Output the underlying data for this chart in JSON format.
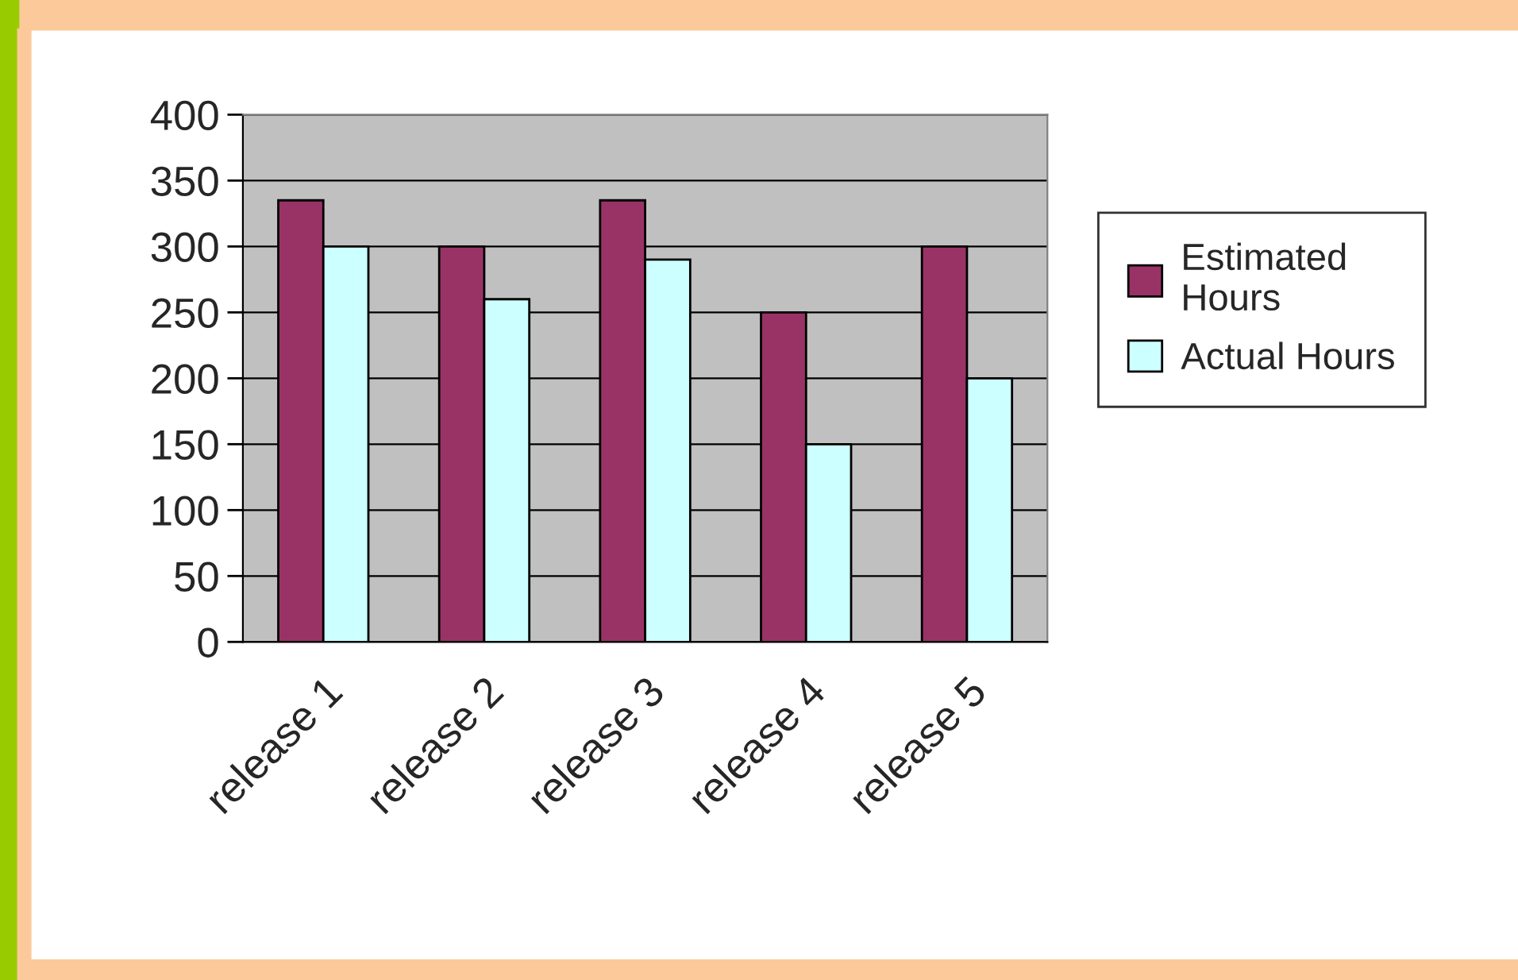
{
  "chart_data": {
    "type": "bar",
    "categories": [
      "release 1",
      "release 2",
      "release 3",
      "release 4",
      "release 5"
    ],
    "series": [
      {
        "name": "Estimated Hours",
        "color": "#993366",
        "values": [
          335,
          300,
          335,
          250,
          300
        ]
      },
      {
        "name": "Actual Hours",
        "color": "#ccffff",
        "values": [
          300,
          260,
          290,
          150,
          200
        ]
      }
    ],
    "ylim": [
      0,
      400
    ],
    "yticks": [
      0,
      50,
      100,
      150,
      200,
      250,
      300,
      350,
      400
    ],
    "grid": "y",
    "legend": "right"
  }
}
